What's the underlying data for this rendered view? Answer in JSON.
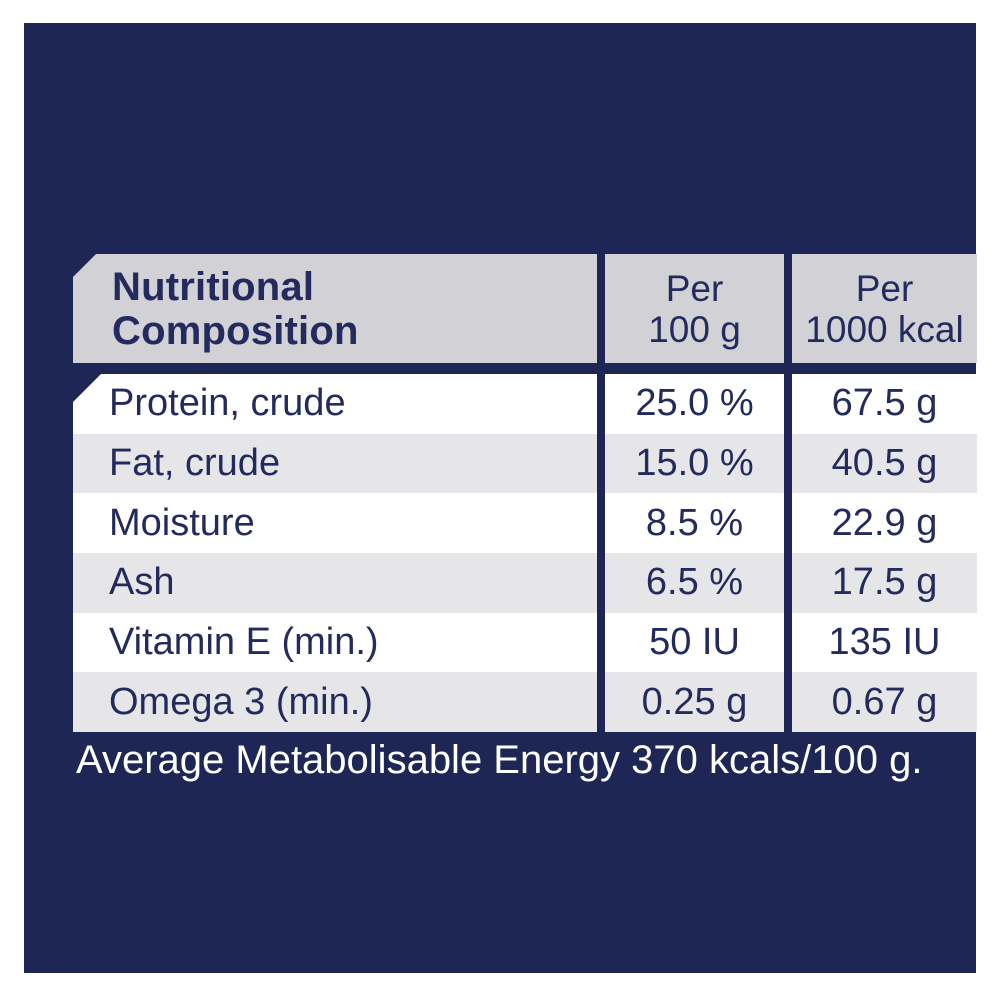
{
  "colors": {
    "page_white": "#ffffff",
    "panel_navy": "#1e2656",
    "header_gray": "#d2d2d6",
    "row_gray": "#e6e6e9",
    "row_white": "#ffffff",
    "text_navy": "#232b5e",
    "footer_text": "#ffffff"
  },
  "table": {
    "title": {
      "line1": "Nutritional",
      "line2": "Composition"
    },
    "columns": [
      {
        "line1": "Per",
        "line2": "100 g"
      },
      {
        "line1": "Per",
        "line2": "1000 kcal"
      }
    ],
    "rows": [
      {
        "label": "Protein, crude",
        "per_100g": "25.0 %",
        "per_1000kcal": "67.5 g"
      },
      {
        "label": "Fat, crude",
        "per_100g": "15.0 %",
        "per_1000kcal": "40.5 g"
      },
      {
        "label": "Moisture",
        "per_100g": "8.5 %",
        "per_1000kcal": "22.9 g"
      },
      {
        "label": "Ash",
        "per_100g": "6.5 %",
        "per_1000kcal": "17.5 g"
      },
      {
        "label": "Vitamin E (min.)",
        "per_100g": "50 IU",
        "per_1000kcal": "135 IU"
      },
      {
        "label": "Omega 3 (min.)",
        "per_100g": "0.25 g",
        "per_1000kcal": "0.67 g"
      }
    ]
  },
  "footer": {
    "energy_note": "Average Metabolisable Energy 370 kcals/100 g."
  }
}
